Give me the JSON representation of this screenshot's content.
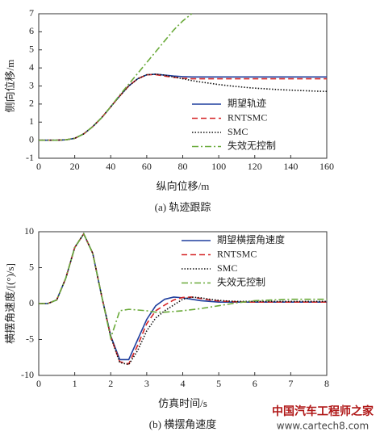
{
  "chart_data": [
    {
      "type": "line",
      "caption": "(a) 轨迹跟踪",
      "xlabel": "纵向位移/m",
      "ylabel": "侧向位移/m",
      "x": [
        0,
        5,
        10,
        15,
        20,
        25,
        30,
        35,
        40,
        45,
        50,
        55,
        60,
        65,
        70,
        75,
        80,
        85,
        90,
        95,
        100,
        105,
        110,
        115,
        120,
        125,
        130,
        135,
        140,
        145,
        150,
        155,
        160
      ],
      "xlim": [
        0,
        160
      ],
      "xticks": [
        0,
        20,
        40,
        60,
        80,
        100,
        120,
        140,
        160
      ],
      "ylim": [
        -1,
        7
      ],
      "yticks": [
        -1,
        0,
        1,
        2,
        3,
        4,
        5,
        6,
        7
      ],
      "legend": "center right",
      "series": [
        {
          "name": "期望轨迹",
          "color": "#1f3f9e",
          "dash": "solid",
          "values": [
            0,
            0,
            0,
            0.02,
            0.1,
            0.35,
            0.75,
            1.25,
            1.85,
            2.45,
            3.0,
            3.4,
            3.62,
            3.65,
            3.6,
            3.55,
            3.52,
            3.5,
            3.5,
            3.5,
            3.5,
            3.5,
            3.5,
            3.5,
            3.5,
            3.5,
            3.5,
            3.5,
            3.5,
            3.5,
            3.5,
            3.5,
            3.5
          ]
        },
        {
          "name": "RNTSMC",
          "color": "#d62728",
          "dash": "dashed",
          "values": [
            0,
            0,
            0,
            0.02,
            0.1,
            0.35,
            0.75,
            1.25,
            1.85,
            2.45,
            3.0,
            3.4,
            3.62,
            3.63,
            3.55,
            3.48,
            3.43,
            3.4,
            3.4,
            3.4,
            3.4,
            3.4,
            3.4,
            3.4,
            3.4,
            3.4,
            3.4,
            3.4,
            3.4,
            3.4,
            3.4,
            3.4,
            3.4
          ]
        },
        {
          "name": "SMC",
          "color": "#111111",
          "dash": "dotted",
          "values": [
            0,
            0,
            0,
            0.02,
            0.1,
            0.35,
            0.75,
            1.25,
            1.85,
            2.45,
            3.0,
            3.4,
            3.62,
            3.65,
            3.6,
            3.5,
            3.4,
            3.3,
            3.22,
            3.15,
            3.08,
            3.02,
            2.97,
            2.92,
            2.88,
            2.85,
            2.82,
            2.79,
            2.77,
            2.75,
            2.73,
            2.71,
            2.7
          ]
        },
        {
          "name": "失效无控制",
          "color": "#6aaa3a",
          "dash": "dashdot",
          "values": [
            0,
            0,
            0,
            0.02,
            0.1,
            0.35,
            0.75,
            1.25,
            1.85,
            2.5,
            3.1,
            3.7,
            4.3,
            4.9,
            5.5,
            6.1,
            6.6,
            7.0,
            null,
            null,
            null,
            null,
            null,
            null,
            null,
            null,
            null,
            null,
            null,
            null,
            null,
            null,
            null
          ]
        }
      ]
    },
    {
      "type": "line",
      "caption": "(b) 横摆角速度",
      "xlabel": "仿真时间/s",
      "ylabel": "横摆角速度/[(°)/s]",
      "x": [
        0,
        0.25,
        0.5,
        0.75,
        1,
        1.25,
        1.5,
        1.75,
        2,
        2.25,
        2.5,
        2.75,
        3,
        3.25,
        3.5,
        3.75,
        4,
        4.25,
        4.5,
        4.75,
        5,
        5.25,
        5.5,
        5.75,
        6,
        6.25,
        6.5,
        6.75,
        7,
        7.25,
        7.5,
        7.75,
        8
      ],
      "xlim": [
        0,
        8
      ],
      "xticks": [
        0,
        1,
        2,
        3,
        4,
        5,
        6,
        7,
        8
      ],
      "ylim": [
        -10,
        10
      ],
      "yticks": [
        -10,
        -5,
        0,
        5,
        10
      ],
      "legend": "upper right",
      "series": [
        {
          "name": "期望横摆角速度",
          "color": "#1f3f9e",
          "dash": "solid",
          "values": [
            0,
            0,
            0.5,
            3.5,
            7.8,
            9.7,
            7,
            1,
            -4.5,
            -7.8,
            -7.8,
            -5,
            -2.2,
            -0.3,
            0.6,
            0.9,
            0.8,
            0.6,
            0.4,
            0.3,
            0.2,
            0.2,
            0.2,
            0.2,
            0.2,
            0.2,
            0.2,
            0.2,
            0.2,
            0.2,
            0.2,
            0.2,
            0.2
          ]
        },
        {
          "name": "RNTSMC",
          "color": "#d62728",
          "dash": "dashed",
          "values": [
            0,
            0,
            0.5,
            3.5,
            7.8,
            9.7,
            7,
            1,
            -4.6,
            -8.1,
            -8.4,
            -5.8,
            -2.8,
            -1,
            -0.2,
            0.5,
            0.85,
            0.9,
            0.7,
            0.5,
            0.35,
            0.3,
            0.25,
            0.2,
            0.2,
            0.2,
            0.2,
            0.2,
            0.2,
            0.2,
            0.2,
            0.2,
            0.2
          ]
        },
        {
          "name": "SMC",
          "color": "#111111",
          "dash": "dotted",
          "values": [
            0,
            0,
            0.5,
            3.5,
            7.8,
            9.7,
            7,
            1,
            -4.6,
            -8.2,
            -8.5,
            -6.5,
            -3.8,
            -2,
            -1,
            -0.2,
            0.6,
            0.9,
            0.8,
            0.6,
            0.45,
            0.35,
            0.3,
            0.3,
            0.3,
            0.3,
            0.3,
            0.3,
            0.3,
            0.3,
            0.3,
            0.3,
            0.3
          ]
        },
        {
          "name": "失效无控制",
          "color": "#6aaa3a",
          "dash": "dashdot",
          "values": [
            0,
            0,
            0.5,
            3.5,
            7.8,
            9.7,
            7,
            1,
            -4.8,
            -1,
            -0.8,
            -0.9,
            -1,
            -1.2,
            -1.2,
            -1.1,
            -1,
            -0.85,
            -0.7,
            -0.5,
            -0.3,
            -0.1,
            0.1,
            0.25,
            0.4,
            0.45,
            0.5,
            0.55,
            0.6,
            0.6,
            0.6,
            0.6,
            0.6
          ]
        }
      ]
    }
  ],
  "watermark": {
    "brand": "中国汽车工程师之家",
    "url": "www.cartech8.com"
  }
}
